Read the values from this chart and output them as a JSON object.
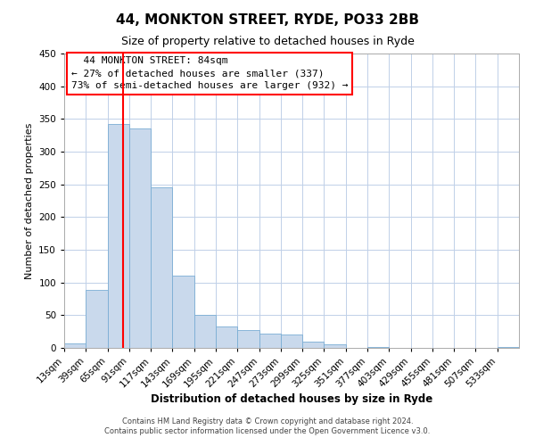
{
  "title": "44, MONKTON STREET, RYDE, PO33 2BB",
  "subtitle": "Size of property relative to detached houses in Ryde",
  "xlabel": "Distribution of detached houses by size in Ryde",
  "ylabel": "Number of detached properties",
  "footer_line1": "Contains HM Land Registry data © Crown copyright and database right 2024.",
  "footer_line2": "Contains public sector information licensed under the Open Government Licence v3.0.",
  "annotation_title": "44 MONKTON STREET: 84sqm",
  "annotation_line1": "← 27% of detached houses are smaller (337)",
  "annotation_line2": "73% of semi-detached houses are larger (932) →",
  "bar_color": "#c9d9ec",
  "bar_edge_color": "#7aadd4",
  "vline_color": "red",
  "vline_x": 84,
  "bin_edges": [
    13,
    39,
    65,
    91,
    117,
    143,
    169,
    195,
    221,
    247,
    273,
    299,
    325,
    351,
    377,
    403,
    429,
    455,
    481,
    507,
    533,
    559
  ],
  "bar_heights": [
    7,
    89,
    342,
    335,
    246,
    110,
    50,
    33,
    27,
    22,
    20,
    10,
    5,
    0,
    1,
    0,
    0,
    0,
    0,
    0,
    1
  ],
  "ylim": [
    0,
    450
  ],
  "yticks": [
    0,
    50,
    100,
    150,
    200,
    250,
    300,
    350,
    400,
    450
  ],
  "background_color": "#ffffff",
  "grid_color": "#c0d0e8",
  "title_fontsize": 11,
  "subtitle_fontsize": 9,
  "xlabel_fontsize": 8.5,
  "ylabel_fontsize": 8,
  "tick_fontsize": 7.5,
  "annotation_fontsize": 8,
  "footer_fontsize": 6
}
